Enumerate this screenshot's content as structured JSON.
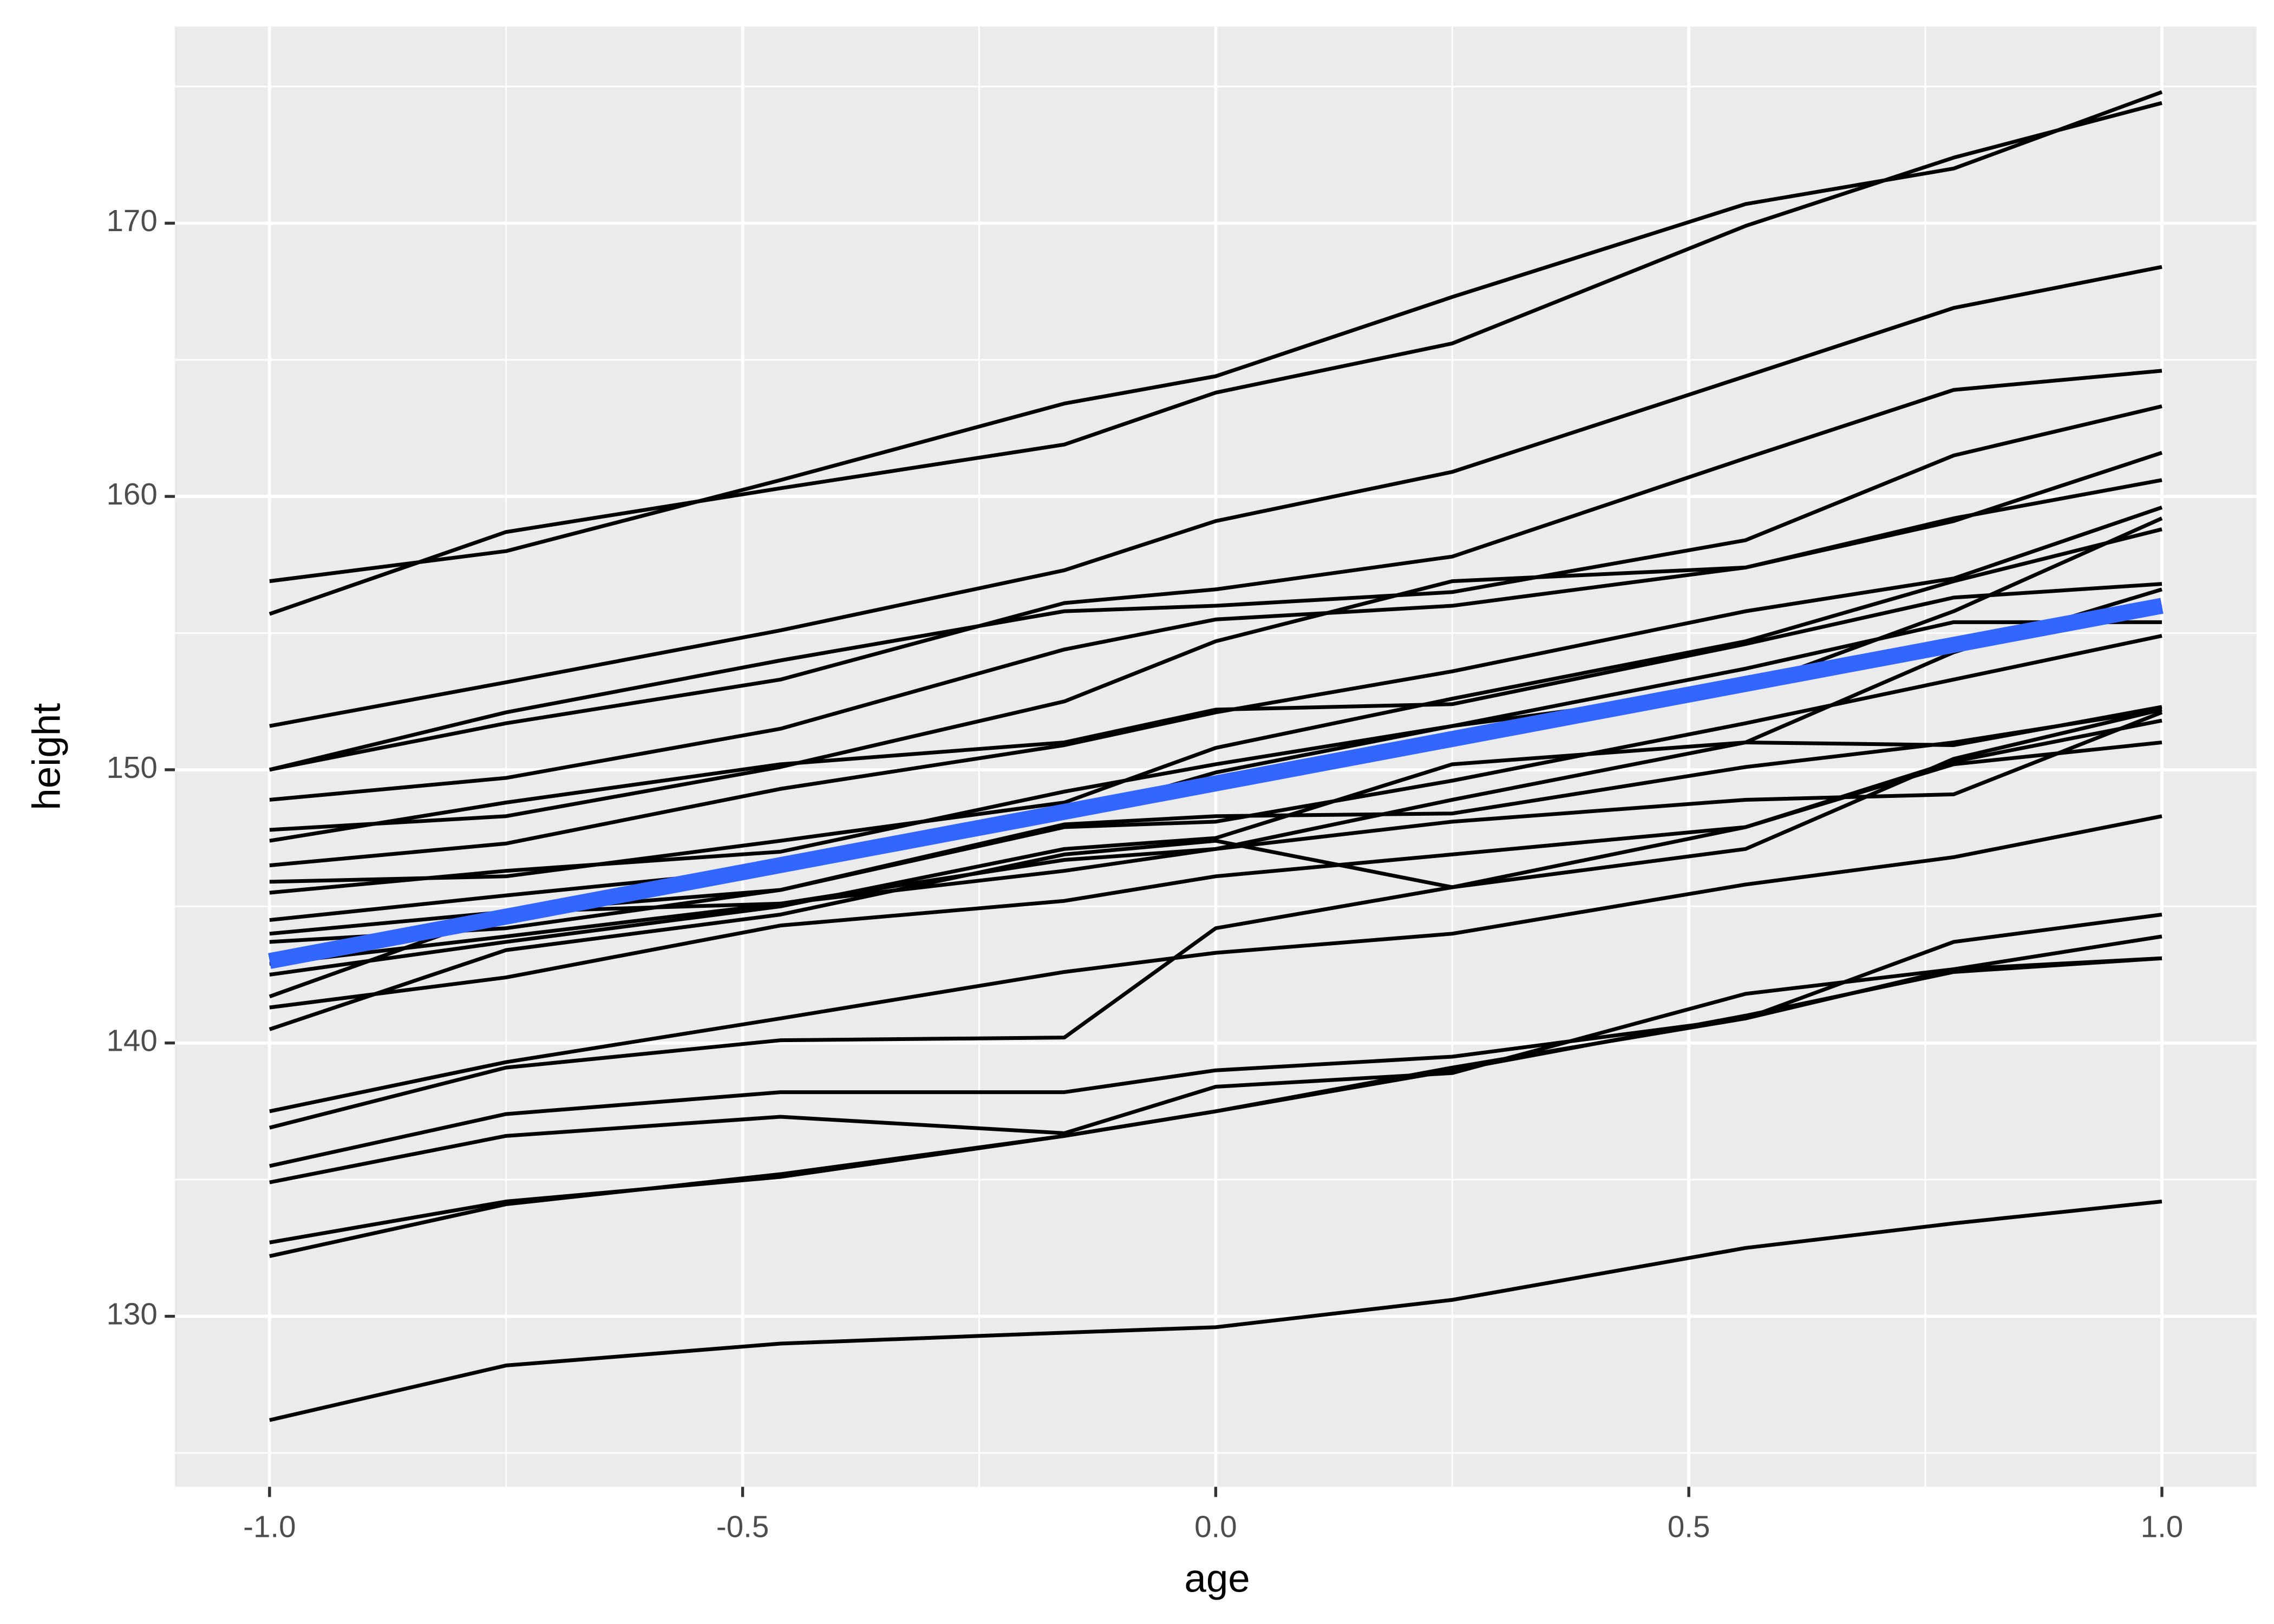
{
  "chart_data": {
    "type": "line",
    "x_label": "age",
    "y_label": "height",
    "xlim": [
      -1.1,
      1.1
    ],
    "ylim": [
      123.76,
      177.2
    ],
    "xticks": [
      {
        "value": -1,
        "label": "-1.0"
      },
      -0.5,
      {
        "value": 0,
        "label": "0.0"
      },
      0.5,
      {
        "value": 1,
        "label": "1.0"
      }
    ],
    "xminor": [
      -0.75,
      -0.25,
      0.25,
      0.75
    ],
    "yticks": [
      130,
      140,
      150,
      160,
      170
    ],
    "yminor": [
      125,
      135,
      145,
      155,
      165,
      175
    ],
    "grid": true,
    "panel_color": "#EBEBEB",
    "line_color": "#000000",
    "x": [
      -1,
      -0.75,
      -0.46,
      -0.16,
      0,
      0.25,
      0.56,
      0.78,
      1
    ],
    "series": [
      {
        "values": [
          156.9,
          158.0,
          160.6,
          163.4,
          164.4,
          167.3,
          170.7,
          172.0,
          174.8
        ]
      },
      {
        "values": [
          155.7,
          158.7,
          160.3,
          161.9,
          163.8,
          165.6,
          169.9,
          172.4,
          174.4
        ]
      },
      {
        "values": [
          151.6,
          153.2,
          155.1,
          157.3,
          159.1,
          160.9,
          164.4,
          166.9,
          168.4
        ]
      },
      {
        "values": [
          150.0,
          151.7,
          153.3,
          156.1,
          156.6,
          157.8,
          161.4,
          163.9,
          164.6
        ]
      },
      {
        "values": [
          150.0,
          152.1,
          154.0,
          155.8,
          156.0,
          156.5,
          158.4,
          161.5,
          163.3
        ]
      },
      {
        "values": [
          148.9,
          149.7,
          151.5,
          154.4,
          155.5,
          156.0,
          157.4,
          159.2,
          160.6
        ]
      },
      {
        "values": [
          147.8,
          148.3,
          150.1,
          152.5,
          154.7,
          156.9,
          157.4,
          159.1,
          161.6
        ]
      },
      {
        "values": [
          147.4,
          148.8,
          150.2,
          151.0,
          152.2,
          152.4,
          154.6,
          156.3,
          156.8
        ]
      },
      {
        "values": [
          146.5,
          147.3,
          149.3,
          150.9,
          152.1,
          153.6,
          155.8,
          157.0,
          159.6
        ]
      },
      {
        "values": [
          145.9,
          146.1,
          147.4,
          148.8,
          150.8,
          152.6,
          154.7,
          156.9,
          158.8
        ]
      },
      {
        "values": [
          145.5,
          146.3,
          147.0,
          149.2,
          150.2,
          151.6,
          153.0,
          155.8,
          159.2
        ]
      },
      {
        "values": [
          144.5,
          145.4,
          146.4,
          148.3,
          149.9,
          151.6,
          153.7,
          155.4,
          155.4
        ]
      },
      {
        "values": [
          144.0,
          144.8,
          145.6,
          147.9,
          148.1,
          149.6,
          151.7,
          153.3,
          154.9
        ]
      },
      {
        "values": [
          143.7,
          144.2,
          145.6,
          148.0,
          148.3,
          148.4,
          150.1,
          151.0,
          152.2
        ]
      },
      {
        "values": [
          142.9,
          143.9,
          145.1,
          146.3,
          147.1,
          148.9,
          151.0,
          154.3,
          156.6
        ]
      },
      {
        "values": [
          142.5,
          143.7,
          145.0,
          147.1,
          147.5,
          150.2,
          151.0,
          150.9,
          152.3
        ]
      },
      {
        "values": [
          141.7,
          144.8,
          145.1,
          146.7,
          147.1,
          148.1,
          148.9,
          149.1,
          152.1
        ]
      },
      {
        "values": [
          141.3,
          142.4,
          144.3,
          145.2,
          146.1,
          146.9,
          147.9,
          150.3,
          151.8
        ]
      },
      {
        "values": [
          140.5,
          143.4,
          144.7,
          146.9,
          147.4,
          145.7,
          147.1,
          150.4,
          152.2
        ]
      },
      {
        "values": [
          137.5,
          139.3,
          140.9,
          142.6,
          143.3,
          144.0,
          145.8,
          146.8,
          148.3
        ]
      },
      {
        "values": [
          136.9,
          139.1,
          140.1,
          140.2,
          144.2,
          145.7,
          147.9,
          150.2,
          151.0
        ]
      },
      {
        "values": [
          135.5,
          137.4,
          138.2,
          138.2,
          139.0,
          139.5,
          140.9,
          143.7,
          144.7
        ]
      },
      {
        "values": [
          134.9,
          136.6,
          137.3,
          136.7,
          138.4,
          138.9,
          141.8,
          142.7,
          143.9
        ]
      },
      {
        "values": [
          132.7,
          134.2,
          135.1,
          136.6,
          137.5,
          139.1,
          140.9,
          142.7,
          143.1
        ]
      },
      {
        "values": [
          132.2,
          134.1,
          135.2,
          136.6,
          137.5,
          139.0,
          141.0,
          142.6,
          143.1
        ]
      },
      {
        "values": [
          126.2,
          128.2,
          129.0,
          129.4,
          129.6,
          130.6,
          132.5,
          133.4,
          134.2
        ]
      }
    ],
    "smooth": {
      "x": [
        -1,
        1
      ],
      "values": [
        143.0,
        156.0
      ],
      "color": "#3366FF"
    }
  }
}
